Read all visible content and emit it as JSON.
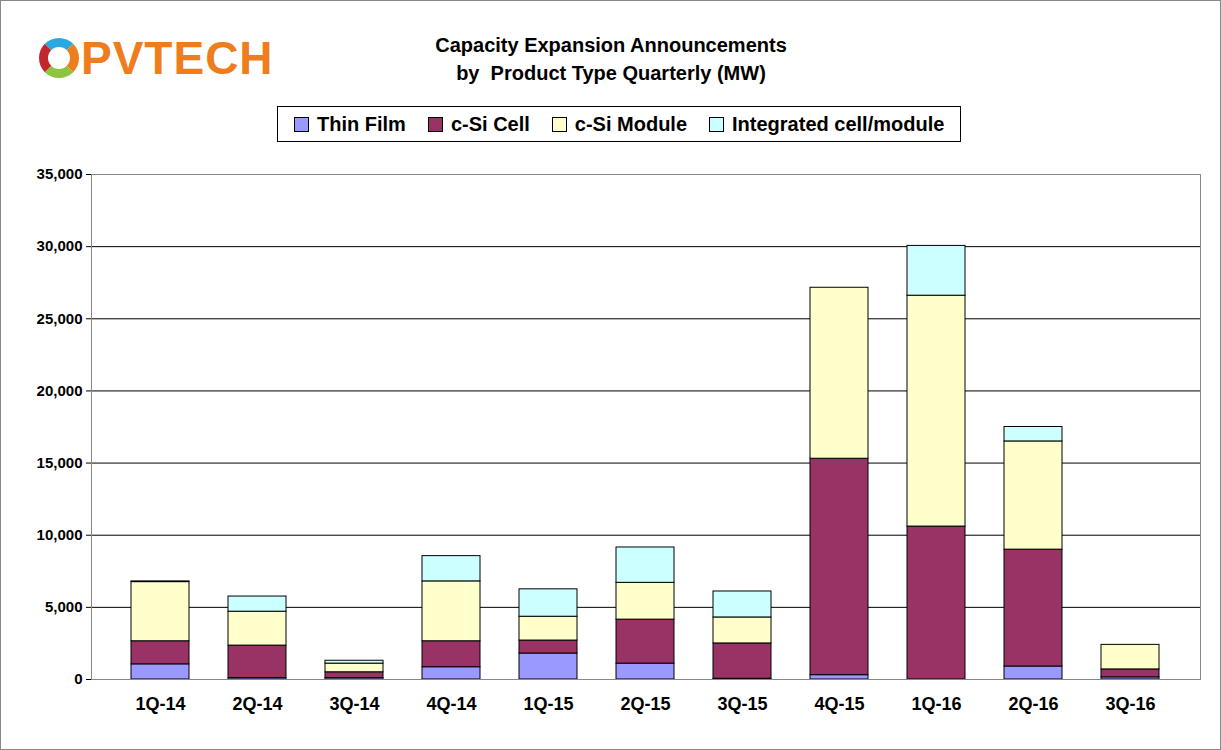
{
  "chart_data": {
    "type": "bar",
    "stacked": true,
    "logo": "PVTECH",
    "title": "Capacity Expansion Announcements",
    "subtitle": "by  Product Type Quarterly (MW)",
    "categories": [
      "1Q-14",
      "2Q-14",
      "3Q-14",
      "4Q-14",
      "1Q-15",
      "2Q-15",
      "3Q-15",
      "4Q-15",
      "1Q-16",
      "2Q-16",
      "3Q-16"
    ],
    "series": [
      {
        "name": "Thin Film",
        "color": "#9999ff",
        "values": [
          1050,
          100,
          100,
          850,
          1800,
          1100,
          50,
          300,
          0,
          900,
          150
        ]
      },
      {
        "name": "c-Si Cell",
        "color": "#993366",
        "values": [
          1600,
          2250,
          400,
          1800,
          900,
          3050,
          2450,
          15000,
          10600,
          8100,
          550
        ]
      },
      {
        "name": "c-Si Module",
        "color": "#ffffcc",
        "values": [
          4100,
          2350,
          600,
          4150,
          1650,
          2550,
          1800,
          11850,
          16000,
          7500,
          1700
        ]
      },
      {
        "name": "Integrated cell/module",
        "color": "#ccffff",
        "values": [
          50,
          1050,
          200,
          1750,
          1900,
          2450,
          1800,
          0,
          3450,
          1000,
          0
        ]
      }
    ],
    "ylim": [
      0,
      35000
    ],
    "yticks": [
      0,
      {
        "value": 5000,
        "label": "5,000"
      },
      {
        "value": 10000,
        "label": "10,000"
      },
      {
        "value": 15000,
        "label": "15,000"
      },
      {
        "value": 20000,
        "label": "20,000"
      },
      {
        "value": 25000,
        "label": "25,000"
      },
      {
        "value": 30000,
        "label": "30,000"
      },
      {
        "value": 35000,
        "label": "35,000"
      }
    ],
    "grid": true,
    "legend": "top"
  }
}
